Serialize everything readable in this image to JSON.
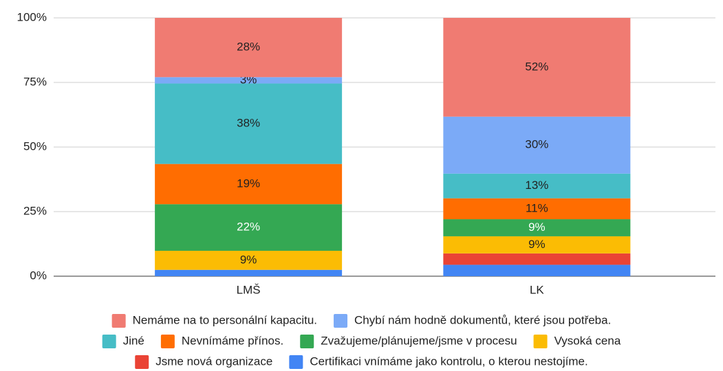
{
  "chart_data": {
    "type": "bar",
    "stacking": "percent",
    "categories": [
      "LMŠ",
      "LK"
    ],
    "series": [
      {
        "name": "Nemáme na to personální kapacitu.",
        "color": "#f07b72",
        "values": [
          28,
          52
        ],
        "value_labels": [
          "28%",
          "52%"
        ]
      },
      {
        "name": "Chybí nám hodně dokumentů, které jsou potřeba.",
        "color": "#7baaf7",
        "values": [
          3,
          30
        ],
        "value_labels": [
          "3%",
          "30%"
        ]
      },
      {
        "name": "Jiné",
        "color": "#46bdc6",
        "values": [
          38,
          13
        ],
        "value_labels": [
          "38%",
          "13%"
        ]
      },
      {
        "name": "Nevnímáme přínos.",
        "color": "#ff6d01",
        "values": [
          19,
          11
        ],
        "value_labels": [
          "19%",
          "11%"
        ]
      },
      {
        "name": "Zvažujeme/plánujeme/jsme v procesu",
        "color": "#34a853",
        "values": [
          22,
          9
        ],
        "value_labels": [
          "22%",
          "9%"
        ]
      },
      {
        "name": "Vysoká cena",
        "color": "#fbbc04",
        "values": [
          9,
          9
        ],
        "value_labels": [
          "9%",
          "9%"
        ]
      },
      {
        "name": "Jsme nová organizace",
        "color": "#ea4335",
        "values": [
          0,
          6
        ],
        "value_labels": [
          null,
          null
        ]
      },
      {
        "name": "Certifikaci vnímáme jako kontrolu, o kterou nestojíme.",
        "color": "#4285f4",
        "values": [
          3,
          6
        ],
        "value_labels": [
          null,
          null
        ]
      }
    ],
    "ylim": [
      0,
      100
    ],
    "yticks": [
      {
        "value": 0,
        "label": "0%"
      },
      {
        "value": 25,
        "label": "25%"
      },
      {
        "value": 50,
        "label": "50%"
      },
      {
        "value": 75,
        "label": "75%"
      },
      {
        "value": 100,
        "label": "100%"
      }
    ],
    "grid": true,
    "legend": "bottom"
  }
}
